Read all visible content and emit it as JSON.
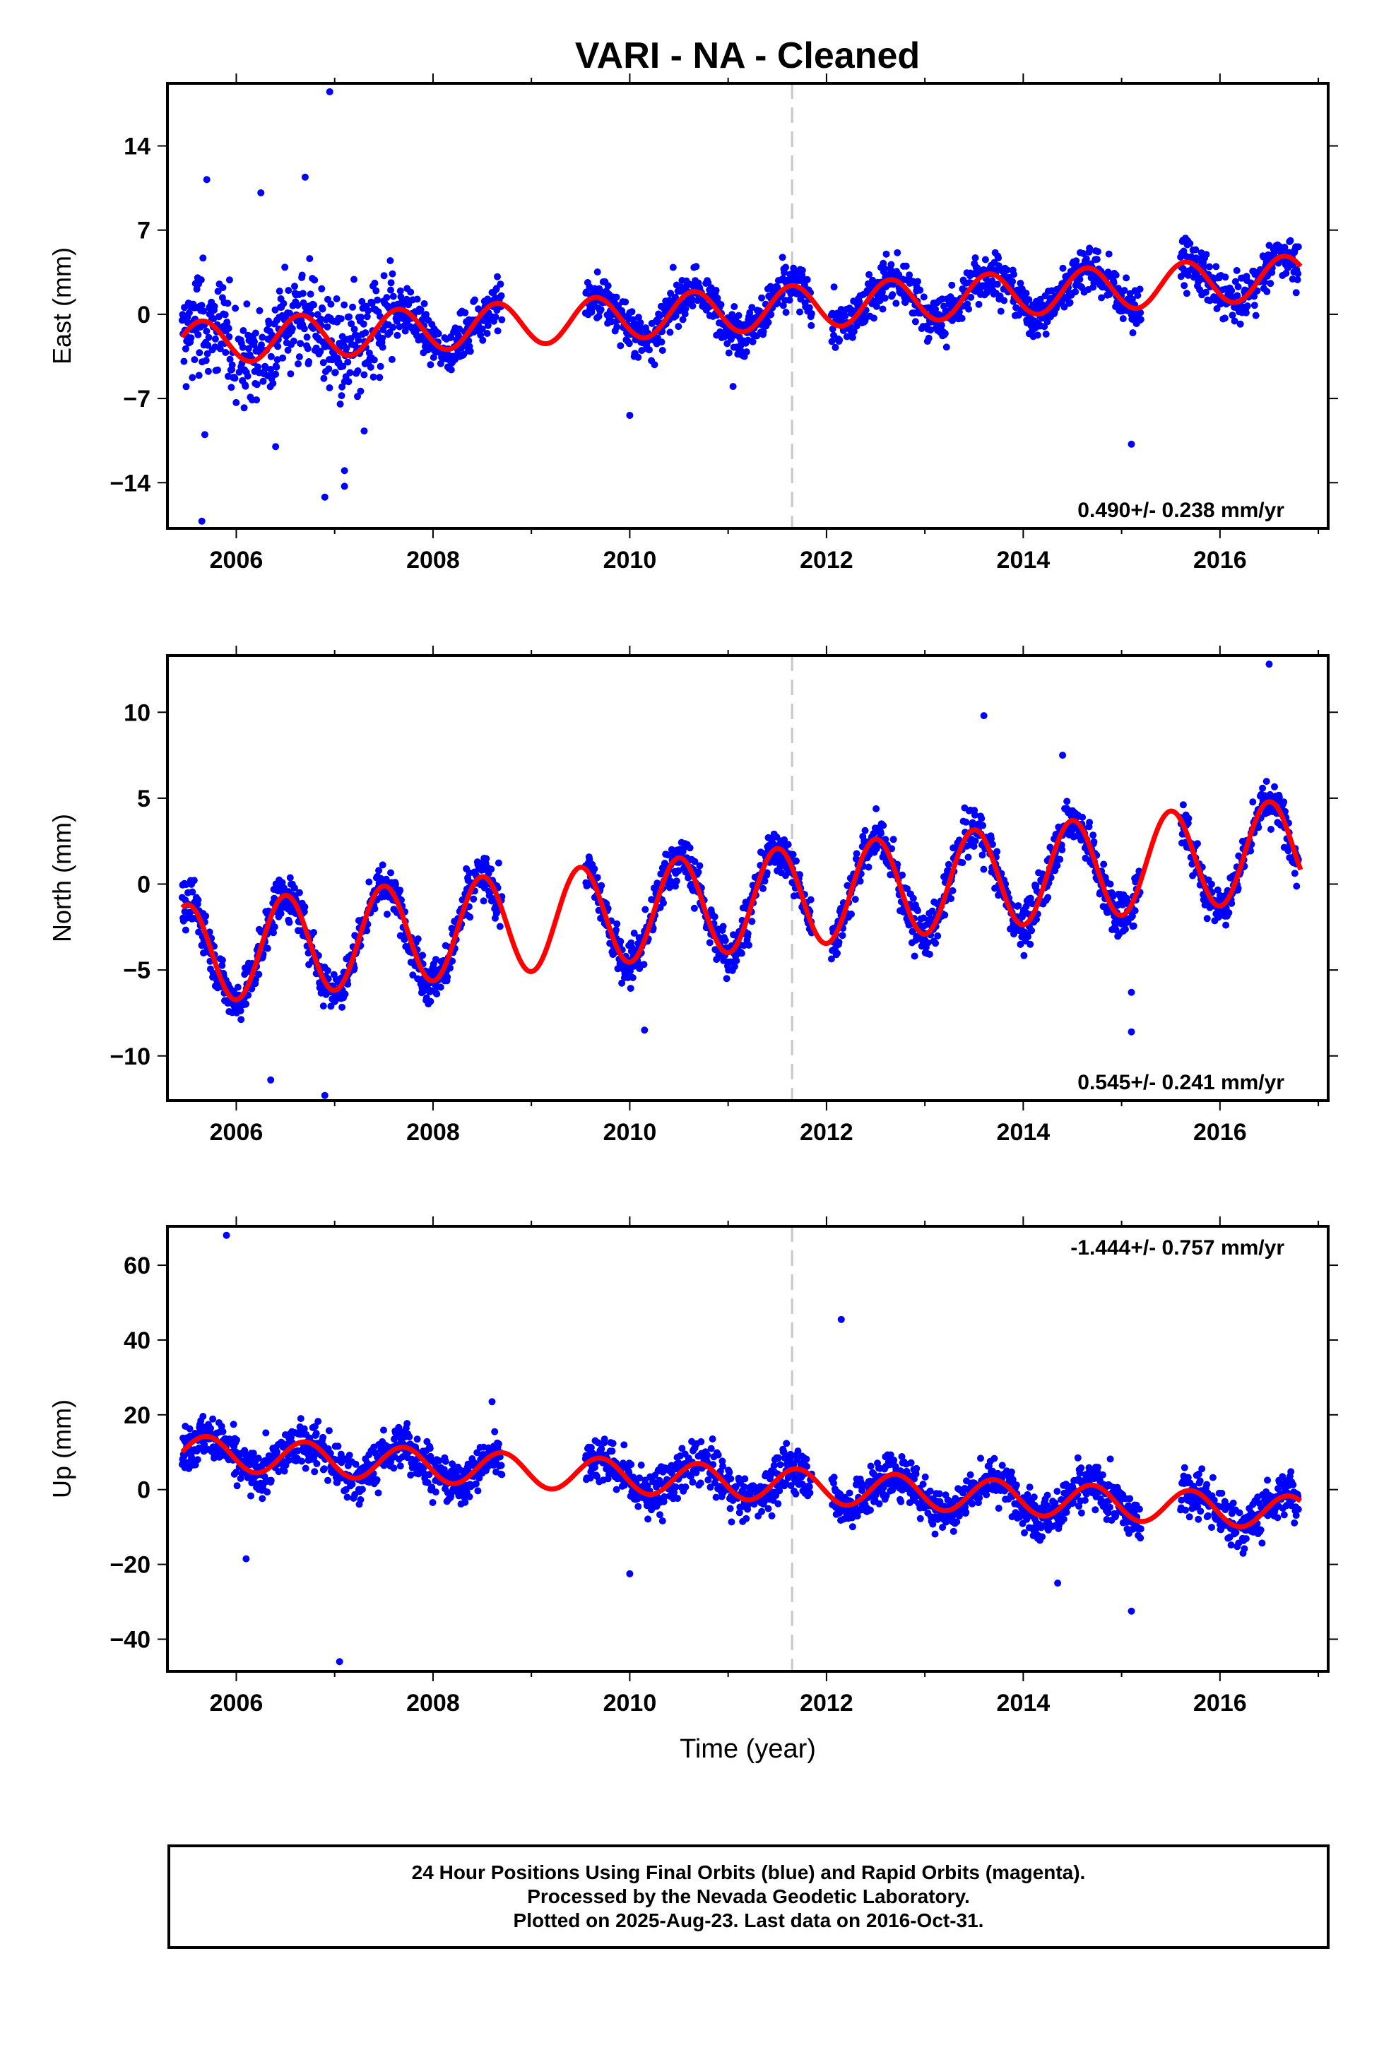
{
  "title": "VARI  - NA - Cleaned",
  "caption": {
    "line1": "24 Hour Positions Using Final Orbits (blue) and Rapid Orbits (magenta).",
    "line2": "Processed by the Nevada Geodetic Laboratory.",
    "line3": "Plotted on 2025-Aug-23. Last data on 2016-Oct-31."
  },
  "colors": {
    "points": "#0000ff",
    "model": "#ff0000",
    "break_line": "#c8c8c8",
    "frame": "#000000"
  },
  "chart_data": [
    {
      "type": "scatter",
      "title": "",
      "xlabel": "",
      "ylabel": "East (mm)",
      "xlim": [
        2005.3,
        2017.1
      ],
      "ylim": [
        -17.8,
        19.2
      ],
      "xticks": [
        2006,
        2008,
        2010,
        2012,
        2014,
        2016
      ],
      "yticks": [
        -14,
        -7,
        0,
        7,
        14
      ],
      "break_year": 2011.65,
      "rate_label": "0.490+/- 0.238 mm/yr",
      "rate_position": "bottom-right",
      "model": {
        "a": -2.43,
        "trend": 0.49,
        "ref": 2005.5,
        "amp": 1.8,
        "phase_peak": 2005.65
      },
      "outliers": [
        [
          2006.95,
          18.5
        ],
        [
          2005.7,
          11.2
        ],
        [
          2006.7,
          11.4
        ],
        [
          2006.25,
          10.1
        ],
        [
          2005.65,
          -17.2
        ],
        [
          2006.9,
          -15.2
        ],
        [
          2005.68,
          -10.0
        ],
        [
          2007.1,
          -13.0
        ],
        [
          2007.1,
          -14.3
        ],
        [
          2006.4,
          -11.0
        ],
        [
          2010.0,
          -8.4
        ],
        [
          2015.1,
          -10.8
        ],
        [
          2007.3,
          -9.7
        ],
        [
          2011.05,
          -6.0
        ]
      ],
      "segments": [
        [
          2005.45,
          2008.7
        ],
        [
          2009.55,
          2011.85
        ],
        [
          2012.05,
          2015.2
        ],
        [
          2015.6,
          2016.8
        ]
      ]
    },
    {
      "type": "scatter",
      "title": "",
      "xlabel": "",
      "ylabel": "North (mm)",
      "xlim": [
        2005.3,
        2017.1
      ],
      "ylim": [
        -12.6,
        13.3
      ],
      "xticks": [
        2006,
        2008,
        2010,
        2012,
        2014,
        2016
      ],
      "yticks": [
        -10,
        -5,
        0,
        5,
        10
      ],
      "break_year": 2011.65,
      "rate_label": "0.545+/- 0.241 mm/yr",
      "rate_position": "bottom-right",
      "model": {
        "a": -4.1,
        "trend": 0.545,
        "ref": 2005.5,
        "amp": 2.9,
        "phase_peak": 2005.5
      },
      "outliers": [
        [
          2016.5,
          12.8
        ],
        [
          2006.35,
          -11.4
        ],
        [
          2006.9,
          -12.3
        ],
        [
          2015.1,
          -8.6
        ],
        [
          2015.1,
          -6.3
        ],
        [
          2010.15,
          -8.5
        ],
        [
          2014.4,
          7.5
        ],
        [
          2013.6,
          9.8
        ]
      ],
      "segments": [
        [
          2005.45,
          2008.7
        ],
        [
          2009.55,
          2011.85
        ],
        [
          2012.05,
          2015.2
        ],
        [
          2015.6,
          2016.8
        ]
      ]
    },
    {
      "type": "scatter",
      "title": "",
      "xlabel": "Time (year)",
      "ylabel": "Up (mm)",
      "xlim": [
        2005.3,
        2017.1
      ],
      "ylim": [
        -48.6,
        70.4
      ],
      "xticks": [
        2006,
        2008,
        2010,
        2012,
        2014,
        2016
      ],
      "yticks": [
        -40,
        -20,
        0,
        20,
        40,
        60
      ],
      "break_year": 2011.65,
      "rate_label": "-1.444+/- 0.757 mm/yr",
      "rate_position": "top-right",
      "model": {
        "a": 10.0,
        "trend": -1.444,
        "ref": 2005.5,
        "amp": 4.5,
        "phase_peak": 2005.7
      },
      "outliers": [
        [
          2005.9,
          68.0
        ],
        [
          2012.15,
          45.5
        ],
        [
          2007.05,
          -46.0
        ],
        [
          2015.1,
          -32.5
        ],
        [
          2010.0,
          -22.5
        ],
        [
          2006.1,
          -18.5
        ],
        [
          2008.6,
          23.5
        ],
        [
          2014.35,
          -25.0
        ]
      ],
      "segments": [
        [
          2005.45,
          2008.7
        ],
        [
          2009.55,
          2011.85
        ],
        [
          2012.05,
          2015.2
        ],
        [
          2015.6,
          2016.8
        ]
      ]
    }
  ]
}
